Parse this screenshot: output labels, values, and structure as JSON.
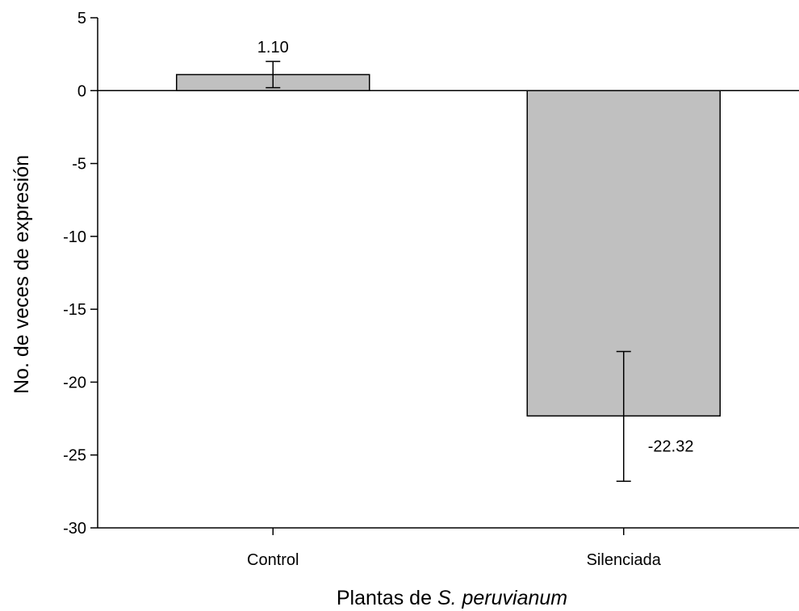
{
  "chart_data": {
    "type": "bar",
    "categories": [
      "Control",
      "Silenciada"
    ],
    "values": [
      1.1,
      -22.32
    ],
    "value_labels": [
      "1.10",
      "-22.32"
    ],
    "error_bars": [
      {
        "low": 0.2,
        "high": 2.0
      },
      {
        "low": -26.8,
        "high": -17.9
      }
    ],
    "ylim": [
      -30,
      5
    ],
    "yticks": [
      5,
      0,
      -5,
      -10,
      -15,
      -20,
      -25,
      -30
    ],
    "ytick_labels": [
      "5",
      "0",
      "-5",
      "-10",
      "-15",
      "-20",
      "-25",
      "-30"
    ],
    "ylabel": "No. de veces de expresión",
    "xlabel_prefix": "Plantas de ",
    "xlabel_italic": "S. peruvianum",
    "bar_color": "#c0c0c0",
    "grid": false
  }
}
